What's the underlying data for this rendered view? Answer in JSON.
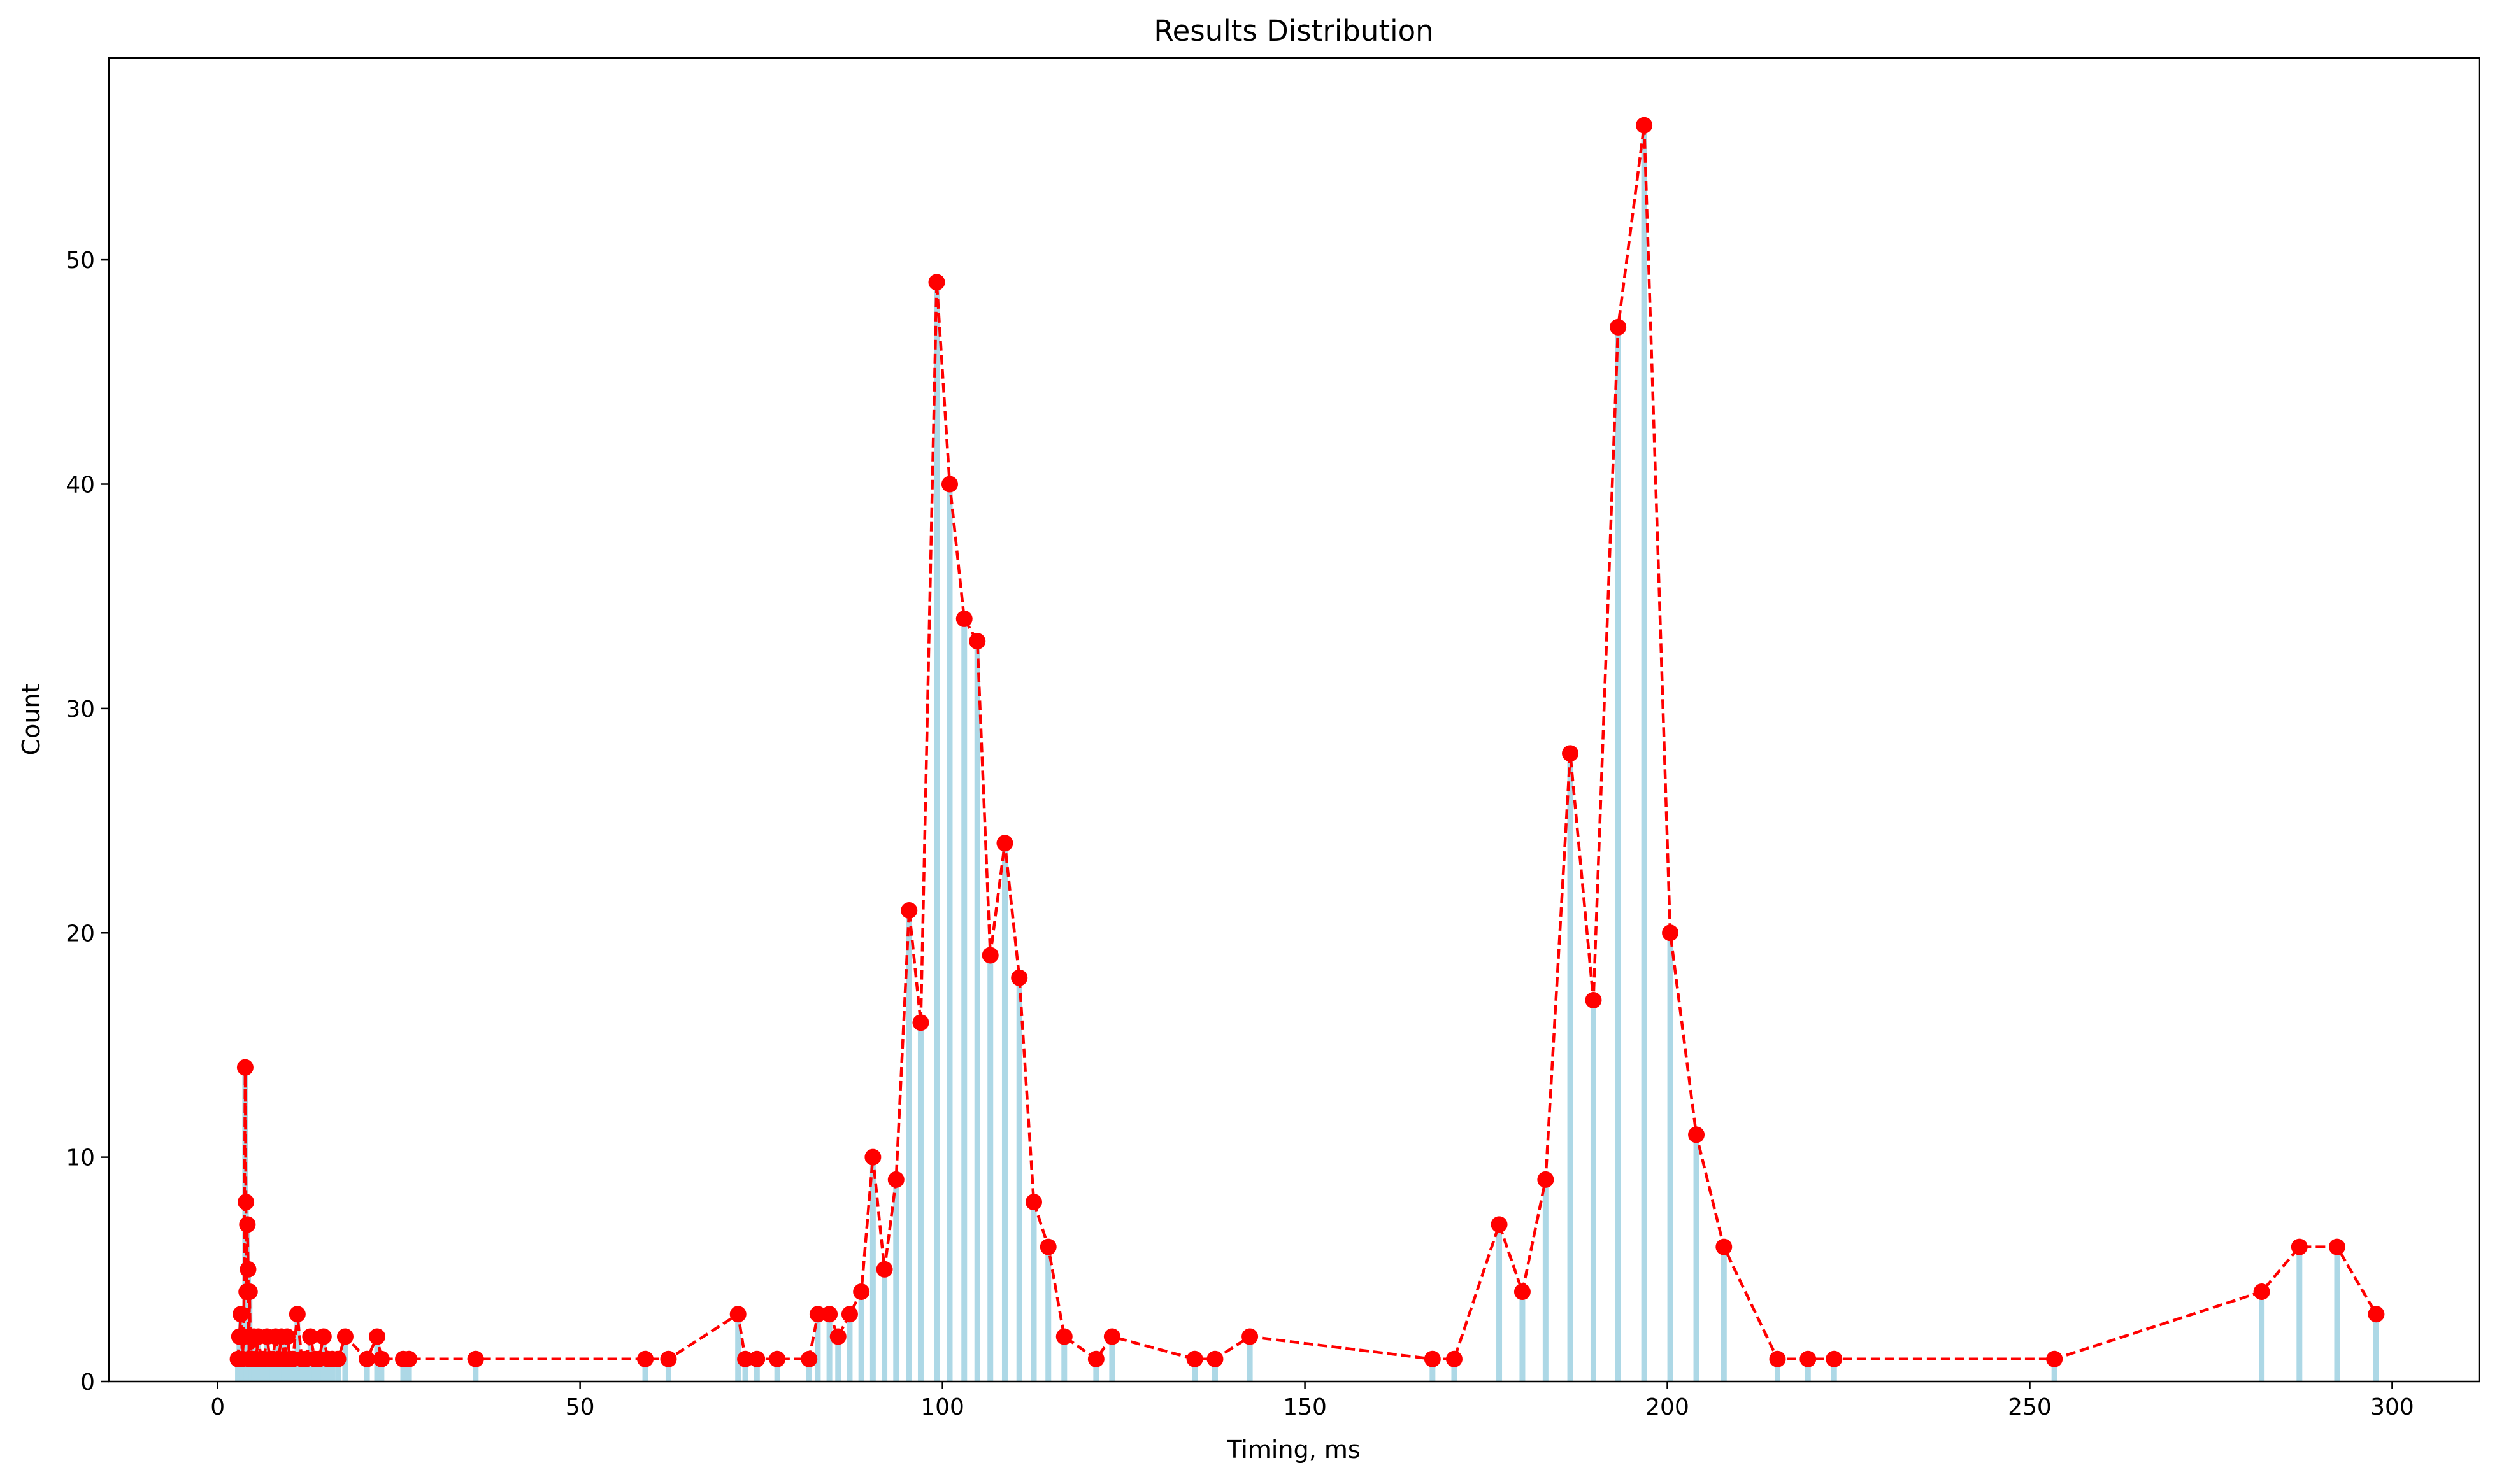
{
  "chart_data": {
    "type": "bar",
    "title": "Results Distribution",
    "xlabel": "Timing, ms",
    "ylabel": "Count",
    "xlim": [
      -15,
      312
    ],
    "ylim": [
      0,
      59
    ],
    "xticks": [
      0,
      50,
      100,
      150,
      200,
      250,
      300
    ],
    "yticks": [
      0,
      10,
      20,
      30,
      40,
      50
    ],
    "grid": false,
    "colors": {
      "bar": "#add8e6",
      "line": "#ff0000",
      "marker": "#ff0000"
    },
    "line_style": "dashed",
    "marker": "circle",
    "points": [
      [
        2.8,
        1
      ],
      [
        3.0,
        2
      ],
      [
        3.2,
        3
      ],
      [
        3.4,
        1
      ],
      [
        3.6,
        2
      ],
      [
        3.8,
        14
      ],
      [
        3.9,
        8
      ],
      [
        4.0,
        4
      ],
      [
        4.1,
        7
      ],
      [
        4.2,
        5
      ],
      [
        4.3,
        1
      ],
      [
        4.4,
        4
      ],
      [
        4.5,
        2
      ],
      [
        4.7,
        1
      ],
      [
        5.0,
        2
      ],
      [
        5.3,
        1
      ],
      [
        5.6,
        2
      ],
      [
        6.0,
        1
      ],
      [
        6.4,
        1
      ],
      [
        6.8,
        2
      ],
      [
        7.2,
        1
      ],
      [
        7.6,
        1
      ],
      [
        8.0,
        2
      ],
      [
        8.4,
        1
      ],
      [
        8.8,
        2
      ],
      [
        9.2,
        1
      ],
      [
        9.6,
        2
      ],
      [
        10.0,
        1
      ],
      [
        10.4,
        1
      ],
      [
        11.0,
        3
      ],
      [
        11.6,
        1
      ],
      [
        12.2,
        1
      ],
      [
        12.8,
        2
      ],
      [
        13.4,
        1
      ],
      [
        14.0,
        1
      ],
      [
        14.6,
        2
      ],
      [
        15.2,
        1
      ],
      [
        15.8,
        1
      ],
      [
        16.6,
        1
      ],
      [
        17.6,
        2
      ],
      [
        20.6,
        1
      ],
      [
        22.0,
        2
      ],
      [
        22.6,
        1
      ],
      [
        25.6,
        1
      ],
      [
        26.4,
        1
      ],
      [
        35.6,
        1
      ],
      [
        59.0,
        1
      ],
      [
        62.2,
        1
      ],
      [
        71.8,
        3
      ],
      [
        72.8,
        1
      ],
      [
        74.4,
        1
      ],
      [
        77.2,
        1
      ],
      [
        81.6,
        1
      ],
      [
        82.8,
        3
      ],
      [
        84.4,
        3
      ],
      [
        85.6,
        2
      ],
      [
        87.2,
        3
      ],
      [
        88.8,
        4
      ],
      [
        90.4,
        10
      ],
      [
        92.0,
        5
      ],
      [
        93.6,
        9
      ],
      [
        95.4,
        21
      ],
      [
        97.0,
        16
      ],
      [
        99.2,
        49
      ],
      [
        101.0,
        40
      ],
      [
        103.0,
        34
      ],
      [
        104.8,
        33
      ],
      [
        106.6,
        19
      ],
      [
        108.6,
        24
      ],
      [
        110.6,
        18
      ],
      [
        112.6,
        8
      ],
      [
        114.6,
        6
      ],
      [
        116.8,
        2
      ],
      [
        121.2,
        1
      ],
      [
        123.4,
        2
      ],
      [
        134.8,
        1
      ],
      [
        137.6,
        1
      ],
      [
        142.4,
        2
      ],
      [
        167.6,
        1
      ],
      [
        170.6,
        1
      ],
      [
        176.8,
        7
      ],
      [
        180.0,
        4
      ],
      [
        183.2,
        9
      ],
      [
        186.6,
        28
      ],
      [
        189.8,
        17
      ],
      [
        193.2,
        47
      ],
      [
        196.8,
        56
      ],
      [
        200.4,
        20
      ],
      [
        204.0,
        11
      ],
      [
        207.8,
        6
      ],
      [
        215.2,
        1
      ],
      [
        219.4,
        1
      ],
      [
        223.0,
        1
      ],
      [
        253.4,
        1
      ],
      [
        282.0,
        4
      ],
      [
        287.2,
        6
      ],
      [
        292.4,
        6
      ],
      [
        297.8,
        3
      ]
    ]
  }
}
